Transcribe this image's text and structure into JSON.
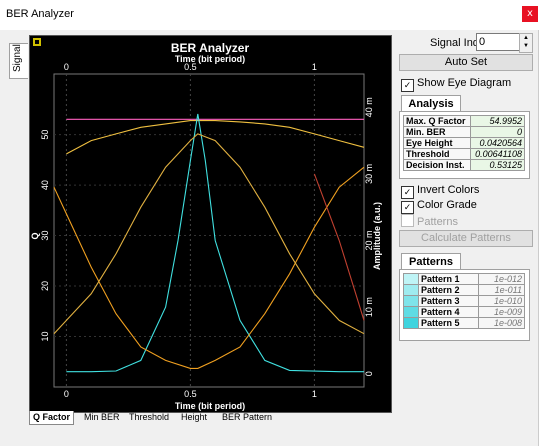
{
  "window": {
    "title": "BER Analyzer",
    "close": "x"
  },
  "side_tab": {
    "label": "Signal"
  },
  "chart": {
    "title": "BER Analyzer",
    "top_axis_label": "Time (bit period)",
    "bottom_axis_label": "Time (bit period)",
    "left_axis_label": "Q",
    "right_axis_label": "Amplitude (a.u.)",
    "top_ticks": [
      "0",
      "0.5",
      "1"
    ],
    "bottom_ticks": [
      "0",
      "0.5",
      "1"
    ],
    "left_ticks": [
      "10",
      "20",
      "30",
      "40",
      "50"
    ],
    "right_ticks": [
      "0",
      "10 m",
      "20 m",
      "30 m",
      "40 m"
    ],
    "corner_icon": "chart-settings-icon"
  },
  "bottom_tabs": [
    "Q Factor",
    "Min BER",
    "Threshold",
    "Height",
    "BER Pattern"
  ],
  "controls": {
    "signal_index_label": "Signal Index",
    "signal_index_value": "0",
    "auto_set": "Auto Set",
    "show_eye": "Show Eye Diagram",
    "invert_colors": "Invert Colors",
    "color_grade": "Color Grade",
    "patterns_chk": "Patterns",
    "calc_patterns": "Calculate Patterns"
  },
  "analysis": {
    "tab": "Analysis",
    "rows": [
      {
        "k": "Max. Q Factor",
        "v": "54.9952"
      },
      {
        "k": "Min. BER",
        "v": "0"
      },
      {
        "k": "Eye Height",
        "v": "0.0420564"
      },
      {
        "k": "Threshold",
        "v": "0.00641108"
      },
      {
        "k": "Decision Inst.",
        "v": "0.53125"
      }
    ]
  },
  "patterns": {
    "tab": "Patterns",
    "rows": [
      {
        "k": "Pattern 1",
        "v": "1e-012",
        "color": "#bff4f6"
      },
      {
        "k": "Pattern 2",
        "v": "1e-011",
        "color": "#9fecf0"
      },
      {
        "k": "Pattern 3",
        "v": "1e-010",
        "color": "#7fe4ea"
      },
      {
        "k": "Pattern 4",
        "v": "1e-009",
        "color": "#5fdce4"
      },
      {
        "k": "Pattern 5",
        "v": "1e-008",
        "color": "#3fd4de"
      }
    ]
  },
  "chart_data": {
    "type": "line",
    "x_range": [
      -0.05,
      1.2
    ],
    "q_range": [
      0,
      62
    ],
    "amp_range": [
      -0.002,
      0.045
    ],
    "series": [
      {
        "color": "#f0c040",
        "x": [
          0,
          0.1,
          0.2,
          0.3,
          0.4,
          0.5,
          0.53,
          0.6,
          0.7,
          0.8,
          0.9,
          1,
          1.1,
          1.2
        ],
        "y": [
          0.033,
          0.035,
          0.036,
          0.037,
          0.0375,
          0.038,
          0.038,
          0.038,
          0.0378,
          0.0375,
          0.037,
          0.036,
          0.035,
          0.034
        ]
      },
      {
        "color": "#ff60c0",
        "x": [
          0,
          0.2,
          0.4,
          0.53,
          0.7,
          0.9,
          1.2
        ],
        "y": [
          0.0382,
          0.0382,
          0.0382,
          0.0382,
          0.0382,
          0.0382,
          0.0382
        ]
      },
      {
        "color": "#40e0e0",
        "x": [
          0,
          0.1,
          0.2,
          0.3,
          0.4,
          0.45,
          0.5,
          0.53,
          0.56,
          0.6,
          0.7,
          0.8,
          0.9,
          1.1,
          1.2
        ],
        "y": [
          0.0003,
          0.0003,
          0.0004,
          0.002,
          0.01,
          0.02,
          0.032,
          0.039,
          0.032,
          0.02,
          0.008,
          0.002,
          0.0005,
          0.0003,
          0.0003
        ]
      },
      {
        "color": "#f0a020",
        "x": [
          -0.05,
          0,
          0.1,
          0.2,
          0.3,
          0.4,
          0.5,
          0.53,
          0.6,
          0.7,
          0.8,
          0.9,
          1,
          1.1,
          1.2
        ],
        "y": [
          0.028,
          0.024,
          0.016,
          0.009,
          0.004,
          0.002,
          0.0008,
          0.0008,
          0.002,
          0.004,
          0.009,
          0.015,
          0.022,
          0.028,
          0.031
        ]
      },
      {
        "color": "#e0b040",
        "x": [
          -0.05,
          0,
          0.1,
          0.2,
          0.3,
          0.4,
          0.5,
          0.53,
          0.6,
          0.7,
          0.8,
          0.9,
          1,
          1.1,
          1.2
        ],
        "y": [
          0.006,
          0.008,
          0.012,
          0.018,
          0.025,
          0.031,
          0.035,
          0.036,
          0.035,
          0.031,
          0.025,
          0.018,
          0.012,
          0.008,
          0.006
        ]
      },
      {
        "color": "#c04030",
        "x": [
          1,
          1.1,
          1.2
        ],
        "y": [
          0.03,
          0.02,
          0.008
        ]
      }
    ]
  }
}
